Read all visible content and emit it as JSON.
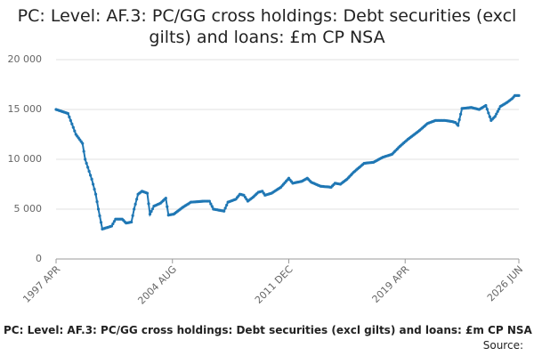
{
  "chart_data": {
    "type": "line",
    "title": "PC: Level: AF.3: PC/GG cross holdings: Debt securities (excl gilts) and loans: £m CP NSA",
    "footer": "PC: Level: AF.3: PC/GG cross holdings: Debt securities (excl gilts) and loans: £m CP NSA",
    "source": "Source:",
    "categories": [
      "1997 APR",
      null,
      null,
      null,
      null,
      null,
      null,
      null,
      null,
      null,
      null,
      null,
      null,
      null,
      null,
      null,
      null,
      null,
      null,
      null,
      null,
      null,
      null,
      null,
      null,
      null,
      null,
      null,
      null,
      null,
      null,
      null,
      null,
      null,
      null,
      null,
      null,
      null,
      null,
      null,
      null,
      null,
      null,
      null,
      null,
      null,
      null,
      null,
      null,
      null,
      null,
      null,
      null,
      null,
      null,
      null,
      null,
      null,
      null,
      null,
      null,
      null,
      null,
      null,
      null,
      null,
      null,
      null,
      null,
      null,
      null,
      null,
      null,
      null,
      null,
      null,
      null,
      null,
      null,
      null,
      null,
      null,
      null,
      null,
      null,
      null,
      null,
      null,
      "2004 AUG",
      null,
      null,
      null,
      null,
      null,
      null,
      null,
      null,
      null,
      null,
      null,
      null,
      null,
      null,
      null,
      null,
      null,
      null,
      null,
      null,
      null,
      null,
      null,
      null,
      null,
      null,
      null,
      null,
      null,
      null,
      null,
      null,
      null,
      null,
      null,
      null,
      null,
      null,
      null,
      null,
      null,
      null,
      null,
      null,
      null,
      null,
      null,
      null,
      null,
      null,
      null,
      null,
      null,
      null,
      null,
      null,
      null,
      null,
      null,
      null,
      null,
      null,
      null,
      null,
      null,
      null,
      null,
      null,
      null,
      null,
      null,
      null,
      null,
      null,
      null,
      null,
      null,
      null,
      null,
      null,
      null,
      null,
      null,
      null,
      null,
      null,
      null,
      "2011 DEC",
      null,
      null,
      null,
      null,
      null,
      null,
      null,
      null,
      null,
      null,
      null,
      null,
      null,
      null,
      null,
      null,
      null,
      null,
      null,
      null,
      null,
      null,
      null,
      null,
      null,
      null,
      null,
      null,
      null,
      null,
      null,
      null,
      null,
      null,
      null,
      null,
      null,
      null,
      null,
      null,
      null,
      null,
      null,
      null,
      null,
      null,
      null,
      null,
      null,
      null,
      null,
      null,
      null,
      null,
      null,
      null,
      null,
      null,
      null,
      null,
      null,
      null,
      null,
      null,
      null,
      null,
      null,
      null,
      null,
      null,
      null,
      null,
      null,
      null,
      null,
      null,
      null,
      null,
      null,
      null,
      null,
      null,
      null,
      null,
      null,
      null,
      null,
      "2019 APR",
      null,
      null,
      null,
      null,
      null,
      null,
      null,
      null,
      null,
      null,
      null,
      null,
      null,
      null,
      null,
      null,
      null,
      null,
      null,
      null,
      null,
      null,
      null,
      null,
      null,
      null,
      null,
      null,
      null,
      null,
      null,
      null,
      null,
      null,
      null,
      null,
      null,
      null,
      null,
      null,
      null,
      null,
      null,
      null,
      null,
      null,
      null,
      null,
      null,
      null,
      null,
      null,
      null,
      null,
      null,
      null,
      null,
      null,
      null,
      null,
      null,
      null,
      null,
      null,
      null,
      null,
      null,
      null,
      null,
      null,
      null,
      null,
      null,
      null,
      null,
      null,
      null,
      null,
      null,
      null,
      null,
      null,
      null,
      null,
      null,
      "2026 JUN"
    ],
    "values": [
      15000,
      14960,
      14910,
      14870,
      14820,
      14780,
      14730,
      14690,
      14640,
      14600,
      14250,
      13900,
      13550,
      13200,
      12850,
      12500,
      12320,
      12140,
      11960,
      11780,
      11600,
      10800,
      10000,
      9600,
      9200,
      8800,
      8400,
      8000,
      7500,
      7000,
      6500,
      5750,
      5000,
      4330,
      3670,
      3000,
      3040,
      3090,
      3130,
      3170,
      3210,
      3260,
      3300,
      3530,
      3770,
      4000,
      4000,
      4000,
      4000,
      4000,
      4000,
      3870,
      3730,
      3600,
      3630,
      3650,
      3680,
      3700,
      4350,
      5000,
      5500,
      6000,
      6500,
      6600,
      6700,
      6800,
      6750,
      6700,
      6650,
      6600,
      5550,
      4500,
      4770,
      5030,
      5300,
      5360,
      5420,
      5480,
      5540,
      5600,
      5730,
      5850,
      5980,
      6100,
      5250,
      4400,
      4430,
      4450,
      4480,
      4500,
      4600,
      4700,
      4800,
      4900,
      5000,
      5100,
      5200,
      5280,
      5370,
      5450,
      5530,
      5620,
      5700,
      5710,
      5720,
      5730,
      5740,
      5750,
      5760,
      5770,
      5780,
      5790,
      5800,
      5800,
      5800,
      5800,
      5800,
      5530,
      5270,
      5000,
      4980,
      4950,
      4930,
      4900,
      4880,
      4850,
      4830,
      4800,
      5100,
      5400,
      5700,
      5750,
      5800,
      5850,
      5900,
      5950,
      6000,
      6170,
      6330,
      6500,
      6470,
      6430,
      6400,
      6200,
      6000,
      5800,
      5900,
      6000,
      6100,
      6200,
      6330,
      6450,
      6580,
      6700,
      6730,
      6770,
      6800,
      6600,
      6400,
      6440,
      6480,
      6520,
      6560,
      6600,
      6690,
      6770,
      6860,
      6940,
      7030,
      7110,
      7200,
      7350,
      7500,
      7650,
      7800,
      7950,
      8100,
      7930,
      7770,
      7600,
      7630,
      7660,
      7690,
      7710,
      7740,
      7770,
      7800,
      7880,
      7950,
      8030,
      8100,
      7970,
      7830,
      7700,
      7640,
      7590,
      7530,
      7470,
      7410,
      7360,
      7300,
      7290,
      7280,
      7260,
      7250,
      7240,
      7230,
      7210,
      7200,
      7330,
      7470,
      7600,
      7580,
      7550,
      7530,
      7500,
      7600,
      7700,
      7800,
      7900,
      8000,
      8140,
      8280,
      8420,
      8560,
      8700,
      8810,
      8930,
      9040,
      9150,
      9260,
      9380,
      9490,
      9600,
      9610,
      9630,
      9640,
      9660,
      9670,
      9690,
      9700,
      9770,
      9840,
      9910,
      9990,
      10060,
      10130,
      10200,
      10240,
      10290,
      10330,
      10370,
      10410,
      10460,
      10500,
      10630,
      10770,
      10900,
      11030,
      11170,
      11300,
      11420,
      11530,
      11650,
      11770,
      11880,
      12000,
      12100,
      12200,
      12300,
      12400,
      12500,
      12600,
      12700,
      12800,
      12910,
      13030,
      13140,
      13260,
      13370,
      13490,
      13600,
      13650,
      13700,
      13750,
      13800,
      13850,
      13900,
      13900,
      13900,
      13900,
      13900,
      13900,
      13900,
      13900,
      13880,
      13860,
      13840,
      13820,
      13800,
      13770,
      13730,
      13700,
      13550,
      13400,
      13970,
      14530,
      15100,
      15110,
      15130,
      15140,
      15160,
      15170,
      15190,
      15200,
      15170,
      15130,
      15100,
      15070,
      15030,
      15000,
      15080,
      15160,
      15240,
      15320,
      15400,
      15030,
      14650,
      14280,
      13900,
      14030,
      14170,
      14300,
      14550,
      14800,
      15050,
      15300,
      15380,
      15460,
      15540,
      15620,
      15700,
      15800,
      15900,
      16000,
      16100,
      16250,
      16400,
      16400,
      16400,
      16400
    ],
    "color": "#1f77b4",
    "ylim": [
      0,
      20000
    ],
    "yticks": [
      0,
      {
        "value": 5000,
        "label": "5 000"
      },
      {
        "value": 10000,
        "label": "10 000"
      },
      {
        "value": 15000,
        "label": "15 000"
      },
      {
        "value": 20000,
        "label": "20 000"
      }
    ],
    "grid": true
  }
}
